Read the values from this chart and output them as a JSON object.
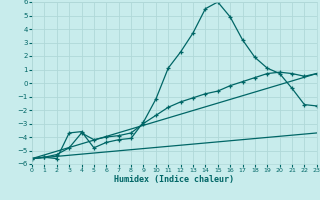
{
  "xlabel": "Humidex (Indice chaleur)",
  "xlim": [
    0,
    23
  ],
  "ylim": [
    -6,
    6
  ],
  "xticks": [
    0,
    1,
    2,
    3,
    4,
    5,
    6,
    7,
    8,
    9,
    10,
    11,
    12,
    13,
    14,
    15,
    16,
    17,
    18,
    19,
    20,
    21,
    22,
    23
  ],
  "yticks": [
    -6,
    -5,
    -4,
    -3,
    -2,
    -1,
    0,
    1,
    2,
    3,
    4,
    5,
    6
  ],
  "bg_color": "#c8ecec",
  "line_color": "#006666",
  "grid_color": "#b0d8d8",
  "line1_x": [
    0,
    1,
    2,
    3,
    4,
    5,
    6,
    7,
    8,
    9,
    10,
    11,
    12,
    13,
    14,
    15,
    16,
    17,
    18,
    19,
    20,
    21,
    22,
    23
  ],
  "line1_y": [
    -5.6,
    -5.5,
    -5.6,
    -3.7,
    -3.6,
    -4.8,
    -4.4,
    -4.2,
    -4.1,
    -2.9,
    -1.2,
    1.1,
    2.3,
    3.7,
    5.5,
    6.0,
    4.9,
    3.2,
    1.9,
    1.1,
    0.7,
    -0.4,
    -1.6,
    -1.7
  ],
  "line2_x": [
    0,
    1,
    2,
    3,
    4,
    5,
    6,
    7,
    8,
    9,
    10,
    11,
    12,
    13,
    14,
    15,
    16,
    17,
    18,
    19,
    20,
    21,
    22,
    23
  ],
  "line2_y": [
    -5.6,
    -5.5,
    -5.3,
    -4.8,
    -3.7,
    -4.2,
    -4.0,
    -3.9,
    -3.7,
    -3.0,
    -2.4,
    -1.8,
    -1.4,
    -1.1,
    -0.8,
    -0.6,
    -0.2,
    0.1,
    0.4,
    0.7,
    0.8,
    0.7,
    0.5,
    0.7
  ],
  "line3_x": [
    0,
    23
  ],
  "line3_y": [
    -5.6,
    0.7
  ],
  "line4_x": [
    0,
    23
  ],
  "line4_y": [
    -5.6,
    -3.7
  ]
}
